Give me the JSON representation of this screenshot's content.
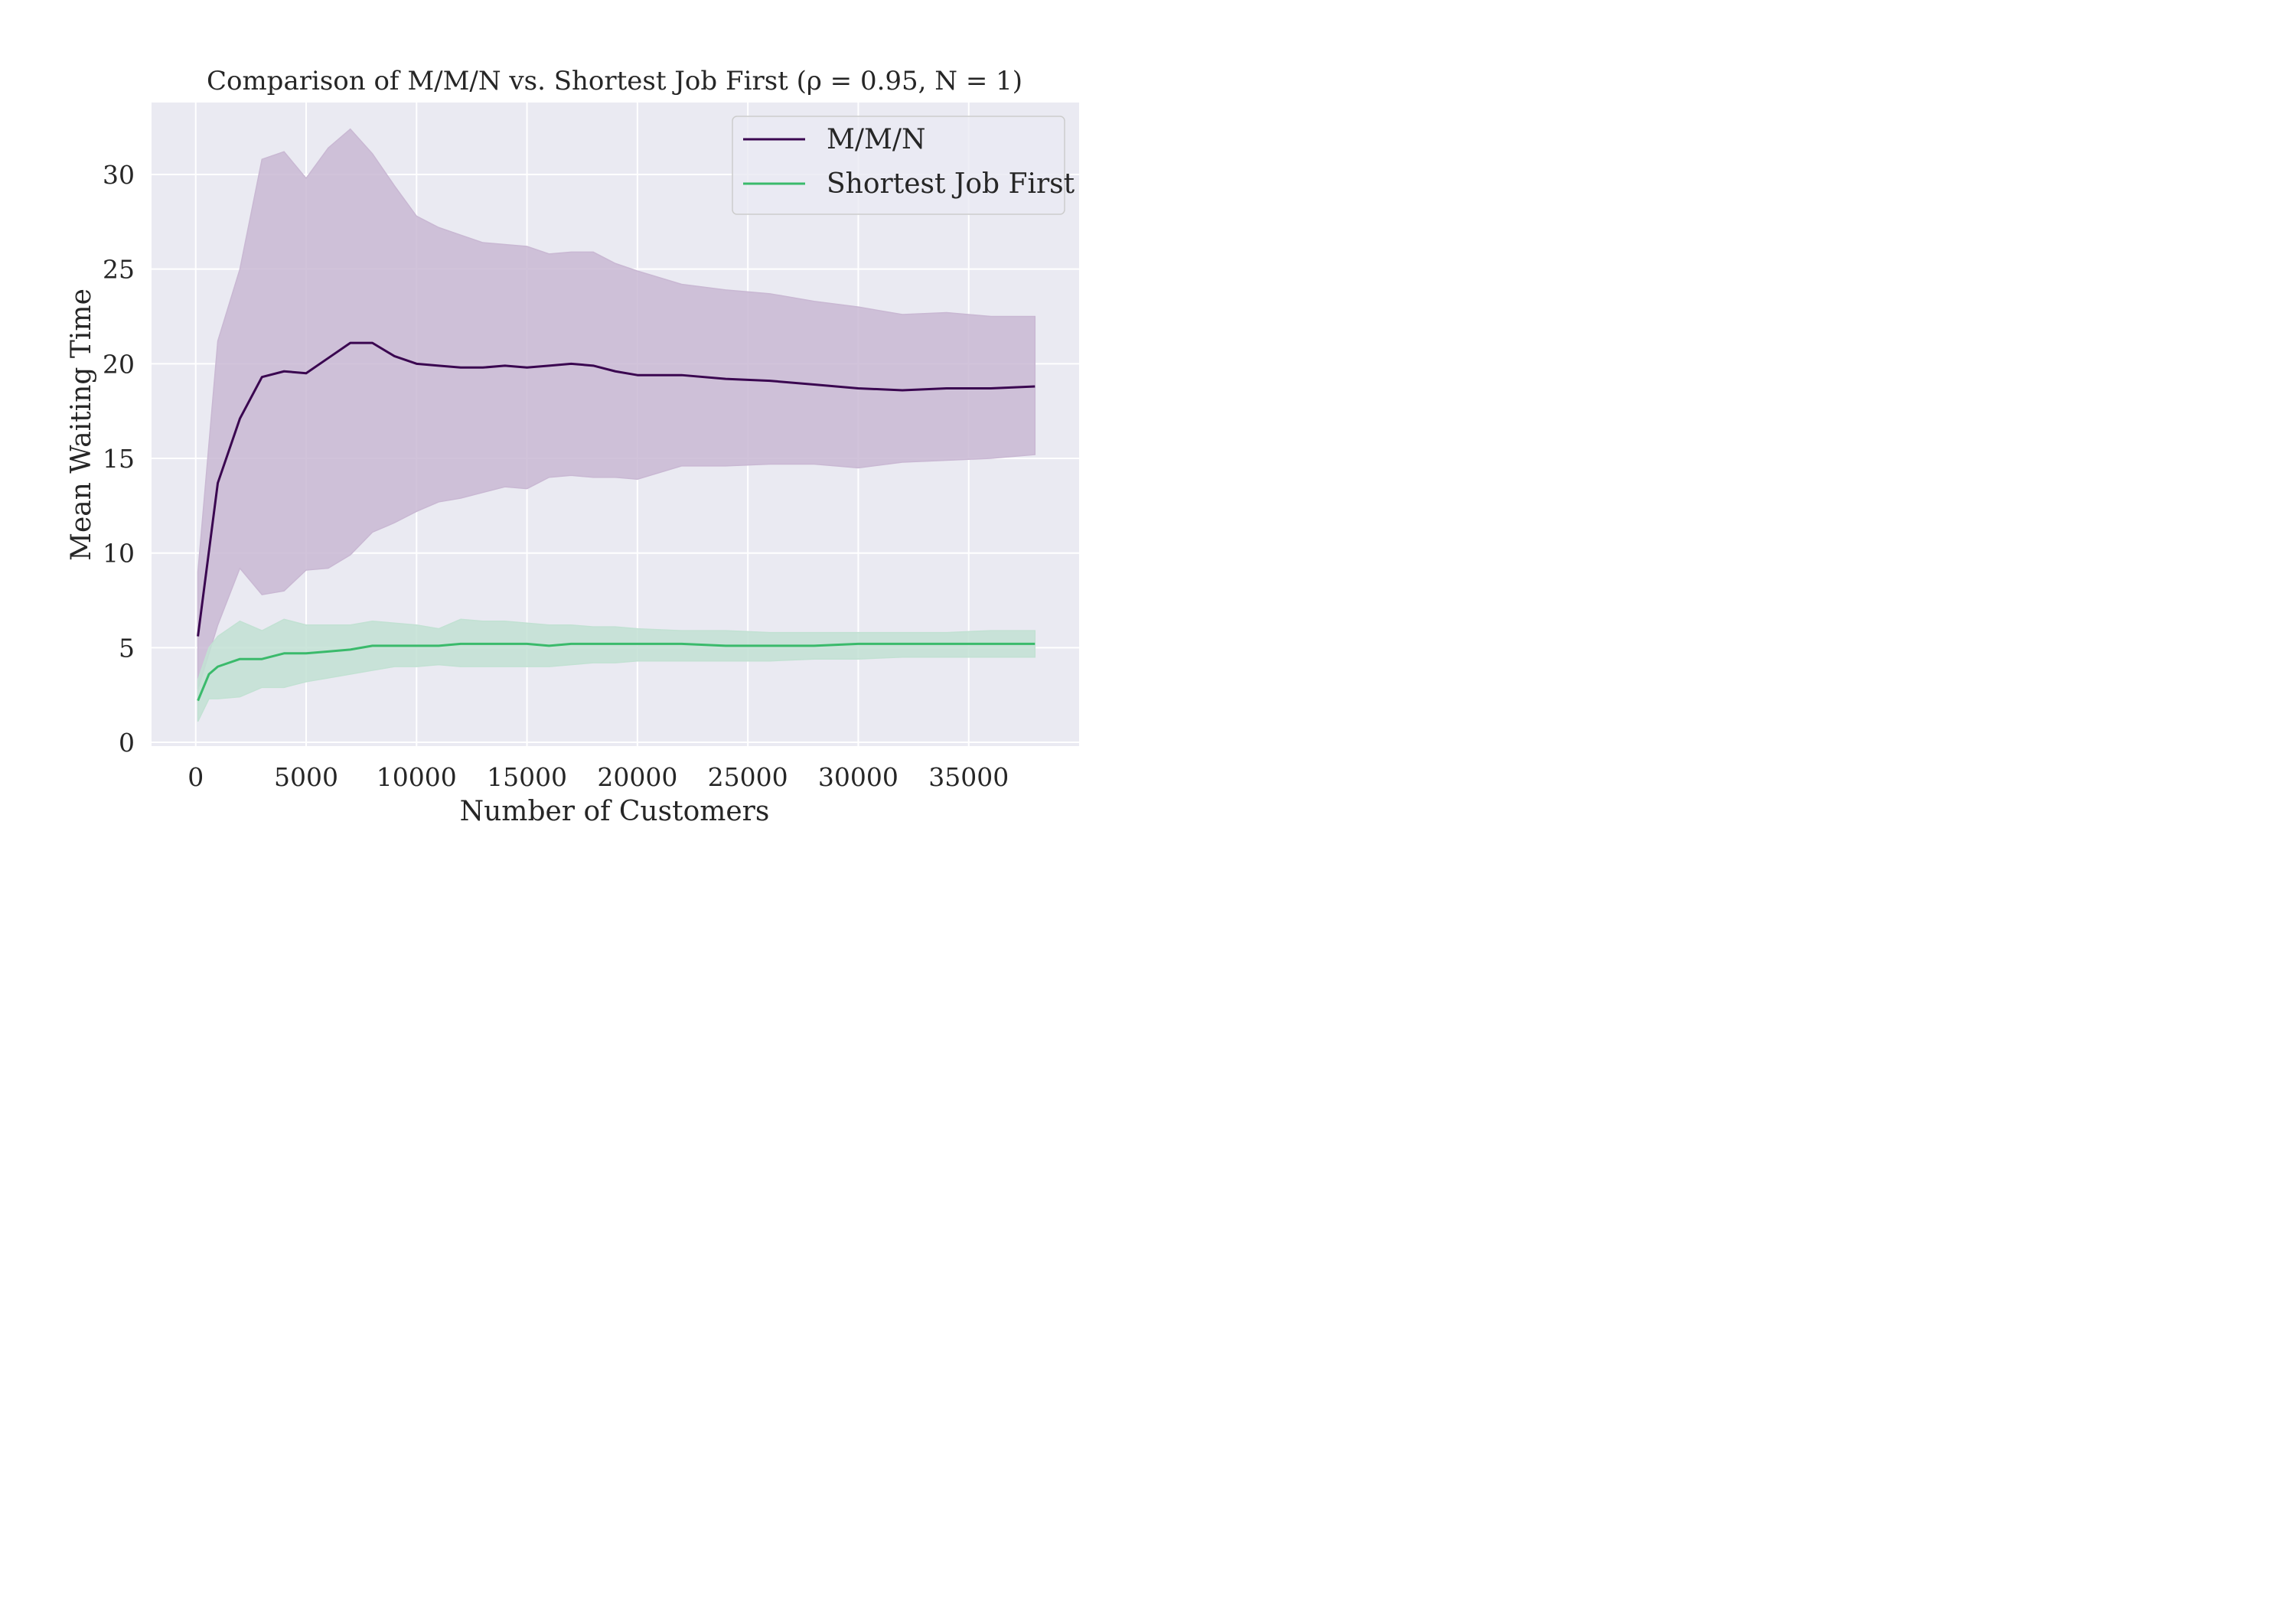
{
  "chart_data": {
    "type": "line",
    "title": "Comparison of M/M/N vs. Shortest Job First (ρ = 0.95, N = 1)",
    "xlabel": "Number of Customers",
    "ylabel": "Mean Waiting Time",
    "xlim": [
      -2000,
      40000
    ],
    "ylim": [
      -0.2,
      33.8
    ],
    "xticks": [
      0,
      5000,
      10000,
      15000,
      20000,
      25000,
      30000,
      35000
    ],
    "xtick_labels": [
      "0",
      "5000",
      "10000",
      "15000",
      "20000",
      "25000",
      "30000",
      "35000"
    ],
    "yticks": [
      0,
      5,
      10,
      15,
      20,
      25,
      30
    ],
    "ytick_labels": [
      "0",
      "5",
      "10",
      "15",
      "20",
      "25",
      "30"
    ],
    "grid": true,
    "legend_position": "top-right",
    "background": "#eaeaf2",
    "series": [
      {
        "name": "M/M/N",
        "color": "#3a0650",
        "band_color": "#c9b8d3",
        "x": [
          100,
          1000,
          2000,
          3000,
          4000,
          5000,
          6000,
          7000,
          8000,
          9000,
          10000,
          11000,
          12000,
          13000,
          14000,
          15000,
          16000,
          17000,
          18000,
          19000,
          20000,
          22000,
          24000,
          26000,
          28000,
          30000,
          32000,
          34000,
          36000,
          38000
        ],
        "y": [
          5.6,
          13.7,
          17.1,
          19.3,
          19.6,
          19.5,
          20.3,
          21.1,
          21.1,
          20.4,
          20.0,
          19.9,
          19.8,
          19.8,
          19.9,
          19.8,
          19.9,
          20.0,
          19.9,
          19.6,
          19.4,
          19.4,
          19.2,
          19.1,
          18.9,
          18.7,
          18.6,
          18.7,
          18.7,
          18.8
        ],
        "upper": [
          9.0,
          21.2,
          25.0,
          30.8,
          31.2,
          29.8,
          31.4,
          32.4,
          31.1,
          29.4,
          27.8,
          27.2,
          26.8,
          26.4,
          26.3,
          26.2,
          25.8,
          25.9,
          25.9,
          25.3,
          24.9,
          24.2,
          23.9,
          23.7,
          23.3,
          23.0,
          22.6,
          22.7,
          22.5,
          22.5
        ],
        "lower": [
          2.8,
          6.2,
          9.2,
          7.8,
          8.0,
          9.1,
          9.2,
          9.9,
          11.1,
          11.6,
          12.2,
          12.7,
          12.9,
          13.2,
          13.5,
          13.4,
          14.0,
          14.1,
          14.0,
          14.0,
          13.9,
          14.6,
          14.6,
          14.7,
          14.7,
          14.5,
          14.8,
          14.9,
          15.0,
          15.2
        ]
      },
      {
        "name": "Shortest Job First",
        "color": "#3aba6b",
        "band_color": "#c2e1d3",
        "x": [
          100,
          600,
          1000,
          2000,
          3000,
          4000,
          5000,
          6000,
          7000,
          8000,
          9000,
          10000,
          11000,
          12000,
          13000,
          14000,
          15000,
          16000,
          17000,
          18000,
          19000,
          20000,
          22000,
          24000,
          26000,
          28000,
          30000,
          32000,
          34000,
          36000,
          38000
        ],
        "y": [
          2.2,
          3.6,
          4.0,
          4.4,
          4.4,
          4.7,
          4.7,
          4.8,
          4.9,
          5.1,
          5.1,
          5.1,
          5.1,
          5.2,
          5.2,
          5.2,
          5.2,
          5.1,
          5.2,
          5.2,
          5.2,
          5.2,
          5.2,
          5.1,
          5.1,
          5.1,
          5.2,
          5.2,
          5.2,
          5.2,
          5.2
        ],
        "upper": [
          3.3,
          5.0,
          5.6,
          6.4,
          5.9,
          6.5,
          6.2,
          6.2,
          6.2,
          6.4,
          6.3,
          6.2,
          6.0,
          6.5,
          6.4,
          6.4,
          6.3,
          6.2,
          6.2,
          6.1,
          6.1,
          6.0,
          5.9,
          5.9,
          5.8,
          5.8,
          5.8,
          5.8,
          5.8,
          5.9,
          5.9
        ],
        "lower": [
          1.1,
          2.3,
          2.3,
          2.4,
          2.9,
          2.9,
          3.2,
          3.4,
          3.6,
          3.8,
          4.0,
          4.0,
          4.1,
          4.0,
          4.0,
          4.0,
          4.0,
          4.0,
          4.1,
          4.2,
          4.2,
          4.3,
          4.3,
          4.3,
          4.3,
          4.4,
          4.4,
          4.5,
          4.5,
          4.5,
          4.5
        ]
      }
    ]
  }
}
